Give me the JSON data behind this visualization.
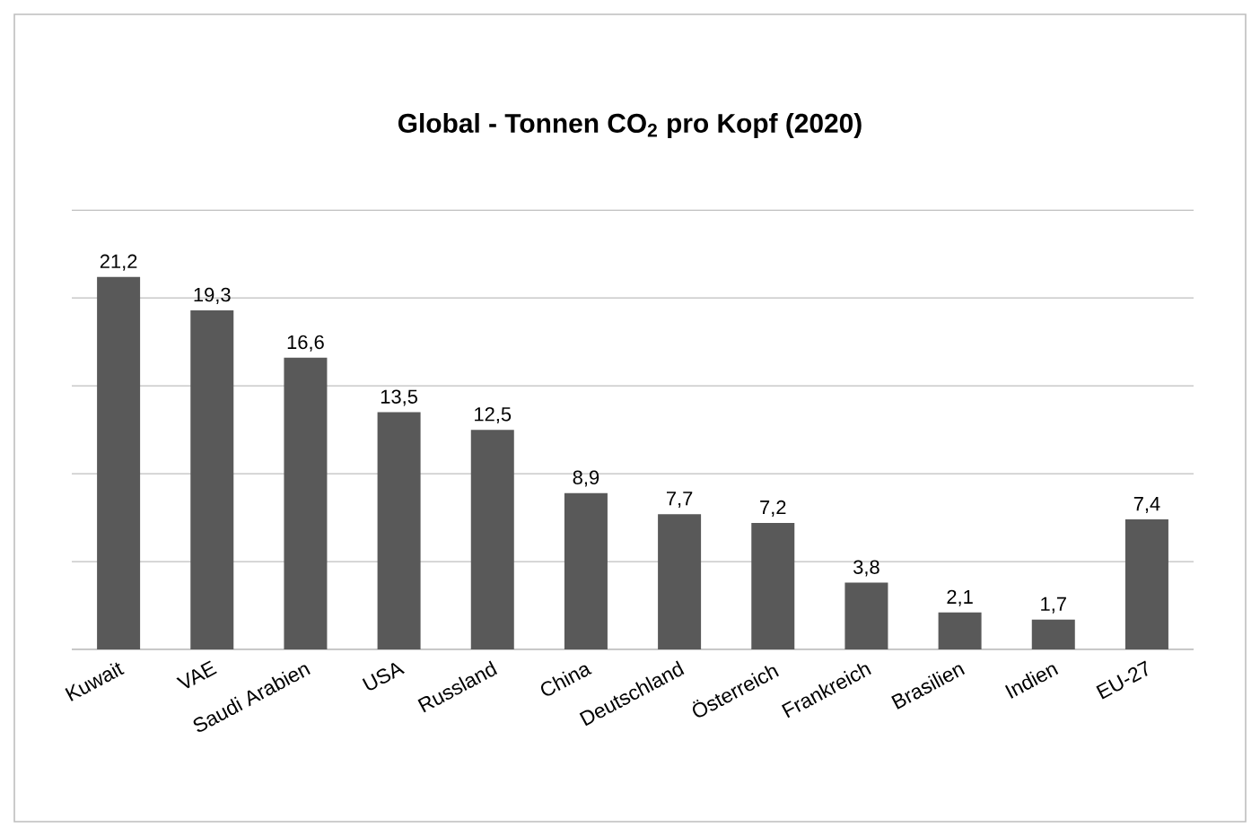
{
  "chart_data": {
    "type": "bar",
    "title": "Global - Tonnen CO$_{2}$ pro Kopf (2020)",
    "categories": [
      "Kuwait",
      "VAE",
      "Saudi Arabien",
      "USA",
      "Russland",
      "China",
      "Deutschland",
      "Österreich",
      "Frankreich",
      "Brasilien",
      "Indien",
      "EU-27"
    ],
    "values": [
      21.2,
      19.3,
      16.6,
      13.5,
      12.5,
      8.9,
      7.7,
      7.2,
      3.8,
      2.1,
      1.7,
      7.4
    ],
    "value_labels": [
      "21,2",
      "19,3",
      "16,6",
      "13,5",
      "12,5",
      "8,9",
      "7,7",
      "7,2",
      "3,8",
      "2,1",
      "1,7",
      "7,4"
    ],
    "color": "#595959",
    "grid": "y",
    "tick_labels": "x"
  }
}
